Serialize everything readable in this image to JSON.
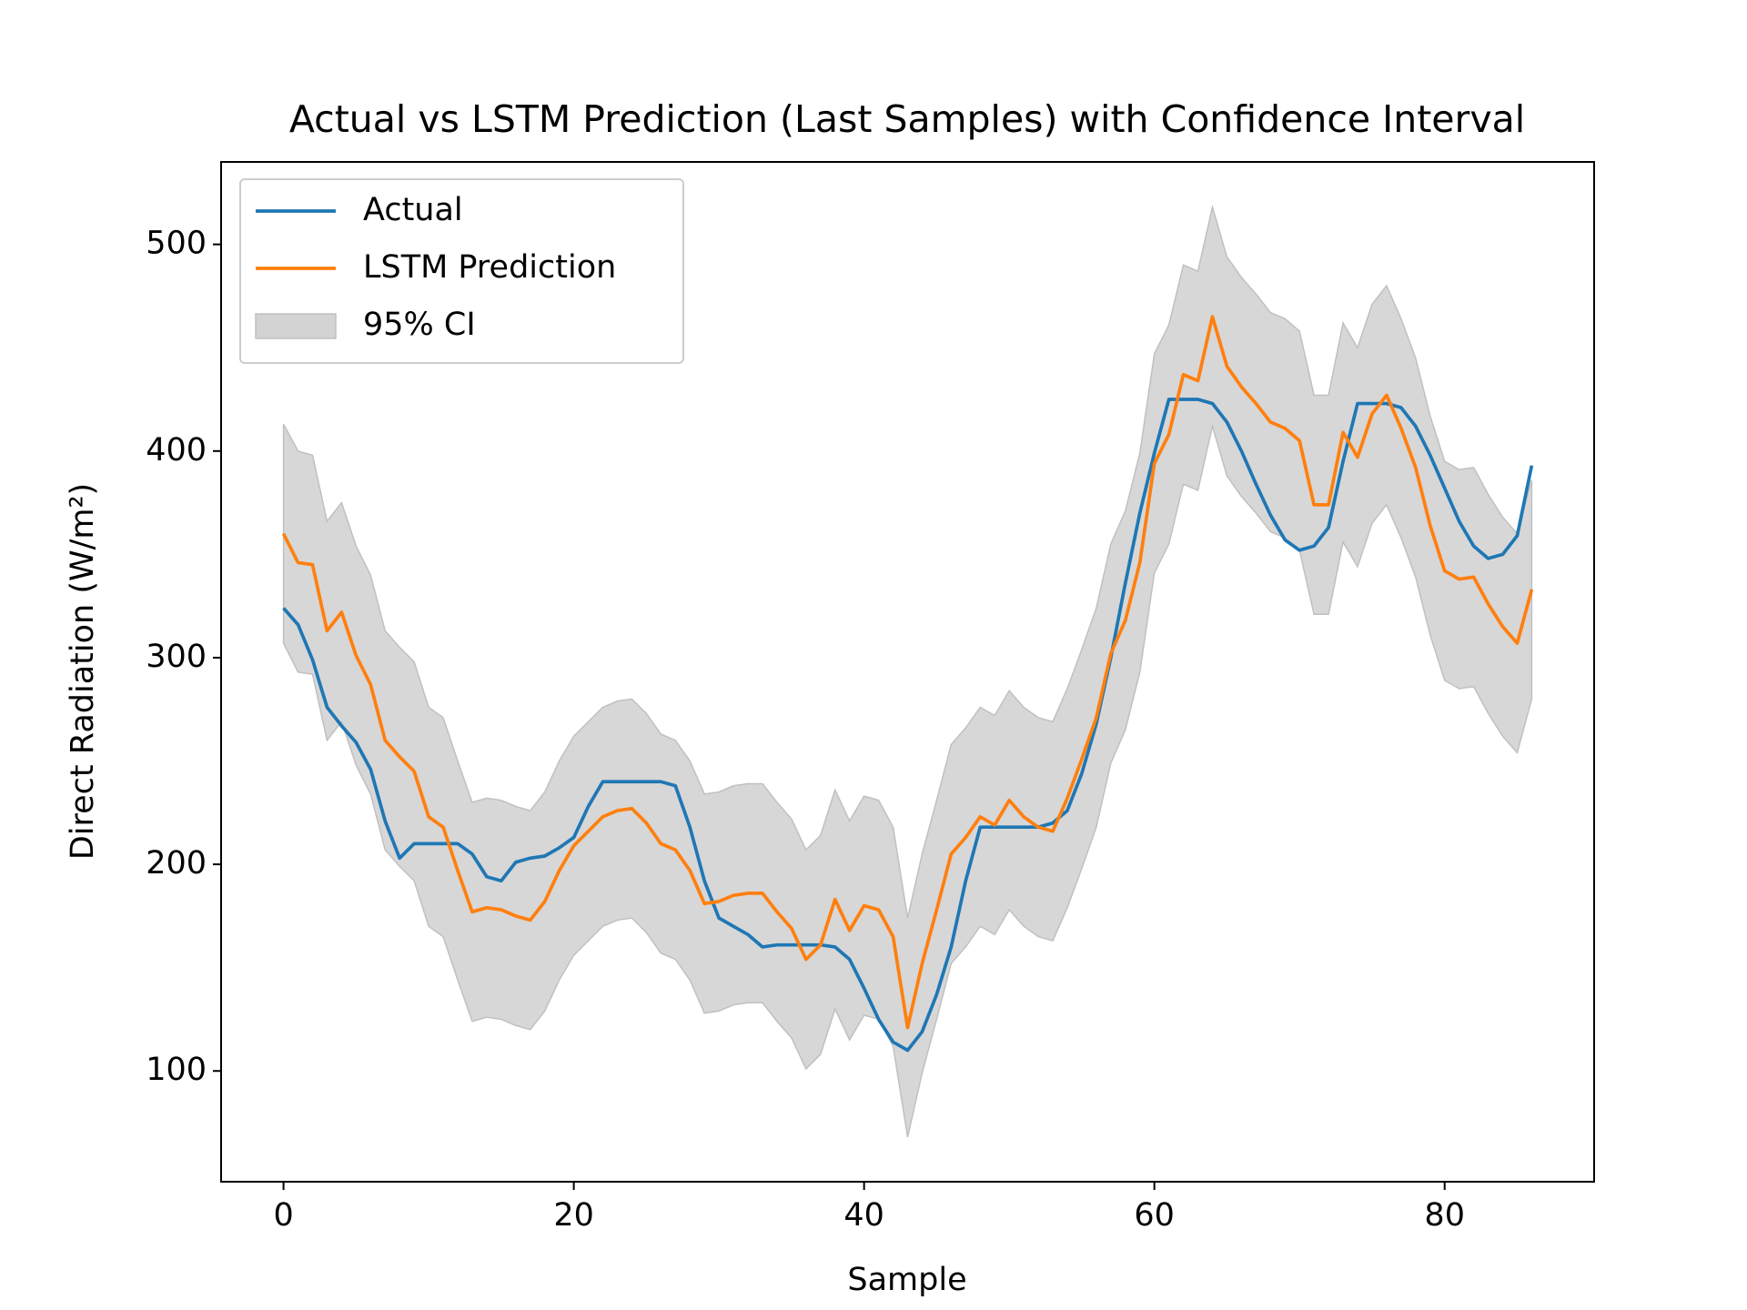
{
  "chart_data": {
    "type": "line",
    "title": "Actual vs LSTM Prediction (Last Samples) with Confidence Interval",
    "x_label": "Sample",
    "y_label": "Direct Radiation (W/m²)",
    "x": [
      0,
      1,
      2,
      3,
      4,
      5,
      6,
      7,
      8,
      9,
      10,
      11,
      12,
      13,
      14,
      15,
      16,
      17,
      18,
      19,
      20,
      21,
      22,
      23,
      24,
      25,
      26,
      27,
      28,
      29,
      30,
      31,
      32,
      33,
      34,
      35,
      36,
      37,
      38,
      39,
      40,
      41,
      42,
      43,
      44,
      45,
      46,
      47,
      48,
      49,
      50,
      51,
      52,
      53,
      54,
      55,
      56,
      57,
      58,
      59,
      60,
      61,
      62,
      63,
      64,
      65,
      66,
      67,
      68,
      69,
      70,
      71,
      72,
      73,
      74,
      75,
      76,
      77,
      78,
      79,
      80,
      81,
      82,
      83,
      84,
      85,
      86
    ],
    "series": [
      {
        "name": "Actual",
        "color": "#1f77b4",
        "values": [
          324,
          316,
          299,
          276,
          267,
          259,
          246,
          221,
          203,
          210,
          210,
          210,
          210,
          205,
          194,
          192,
          201,
          203,
          204,
          208,
          213,
          228,
          240,
          240,
          240,
          240,
          240,
          238,
          218,
          192,
          174,
          170,
          166,
          160,
          161,
          161,
          161,
          161,
          160,
          154,
          140,
          125,
          114,
          110,
          119,
          137,
          160,
          192,
          218,
          218,
          218,
          218,
          218,
          220,
          226,
          244,
          268,
          300,
          336,
          370,
          399,
          425,
          425,
          425,
          423,
          414,
          400,
          384,
          369,
          357,
          352,
          354,
          363,
          395,
          423,
          423,
          423,
          421,
          412,
          398,
          382,
          366,
          354,
          348,
          350,
          359,
          393
        ]
      },
      {
        "name": "LSTM Prediction",
        "color": "#ff7f0e",
        "values": [
          360,
          346,
          345,
          313,
          322,
          301,
          287,
          260,
          252,
          245,
          223,
          218,
          197,
          177,
          179,
          178,
          175,
          173,
          182,
          197,
          209,
          216,
          223,
          226,
          227,
          220,
          210,
          207,
          197,
          181,
          182,
          185,
          186,
          186,
          177,
          169,
          154,
          161,
          183,
          168,
          180,
          178,
          165,
          121,
          152,
          178,
          205,
          213,
          223,
          219,
          231,
          223,
          218,
          216,
          232,
          251,
          271,
          302,
          318,
          346,
          394,
          408,
          437,
          434,
          465,
          441,
          431,
          423,
          414,
          411,
          405,
          374,
          374,
          409,
          397,
          418,
          427,
          411,
          392,
          364,
          342,
          338,
          339,
          326,
          315,
          307,
          333
        ]
      },
      {
        "name": "95% CI",
        "color": "#d3d3d3",
        "upper": [
          413,
          400,
          398,
          366,
          375,
          354,
          340,
          313,
          305,
          298,
          276,
          271,
          250,
          230,
          232,
          231,
          228,
          226,
          235,
          250,
          262,
          269,
          276,
          279,
          280,
          273,
          263,
          260,
          250,
          234,
          235,
          238,
          239,
          239,
          230,
          222,
          207,
          214,
          236,
          221,
          233,
          231,
          218,
          174,
          205,
          231,
          258,
          266,
          276,
          272,
          284,
          276,
          271,
          269,
          285,
          304,
          324,
          355,
          371,
          399,
          447,
          461,
          490,
          487,
          518,
          494,
          484,
          476,
          467,
          464,
          458,
          427,
          427,
          462,
          450,
          471,
          480,
          464,
          445,
          417,
          395,
          391,
          392,
          379,
          368,
          360,
          386
        ],
        "lower": [
          307,
          293,
          292,
          260,
          269,
          248,
          234,
          207,
          199,
          192,
          170,
          165,
          144,
          124,
          126,
          125,
          122,
          120,
          129,
          144,
          156,
          163,
          170,
          173,
          174,
          167,
          157,
          154,
          144,
          128,
          129,
          132,
          133,
          133,
          124,
          116,
          101,
          108,
          130,
          115,
          127,
          125,
          112,
          68,
          99,
          125,
          152,
          160,
          170,
          166,
          178,
          170,
          165,
          163,
          179,
          198,
          218,
          249,
          265,
          293,
          341,
          355,
          384,
          381,
          412,
          388,
          378,
          370,
          361,
          358,
          352,
          321,
          321,
          356,
          344,
          365,
          374,
          358,
          339,
          311,
          289,
          285,
          286,
          273,
          262,
          254,
          280
        ]
      }
    ],
    "xlim": [
      -4.3,
      90.3
    ],
    "ylim": [
      46.4,
      539.9
    ],
    "xticks": [
      0,
      20,
      40,
      60,
      80
    ],
    "yticks": [
      100,
      200,
      300,
      400,
      500
    ],
    "legend": "upper left"
  }
}
